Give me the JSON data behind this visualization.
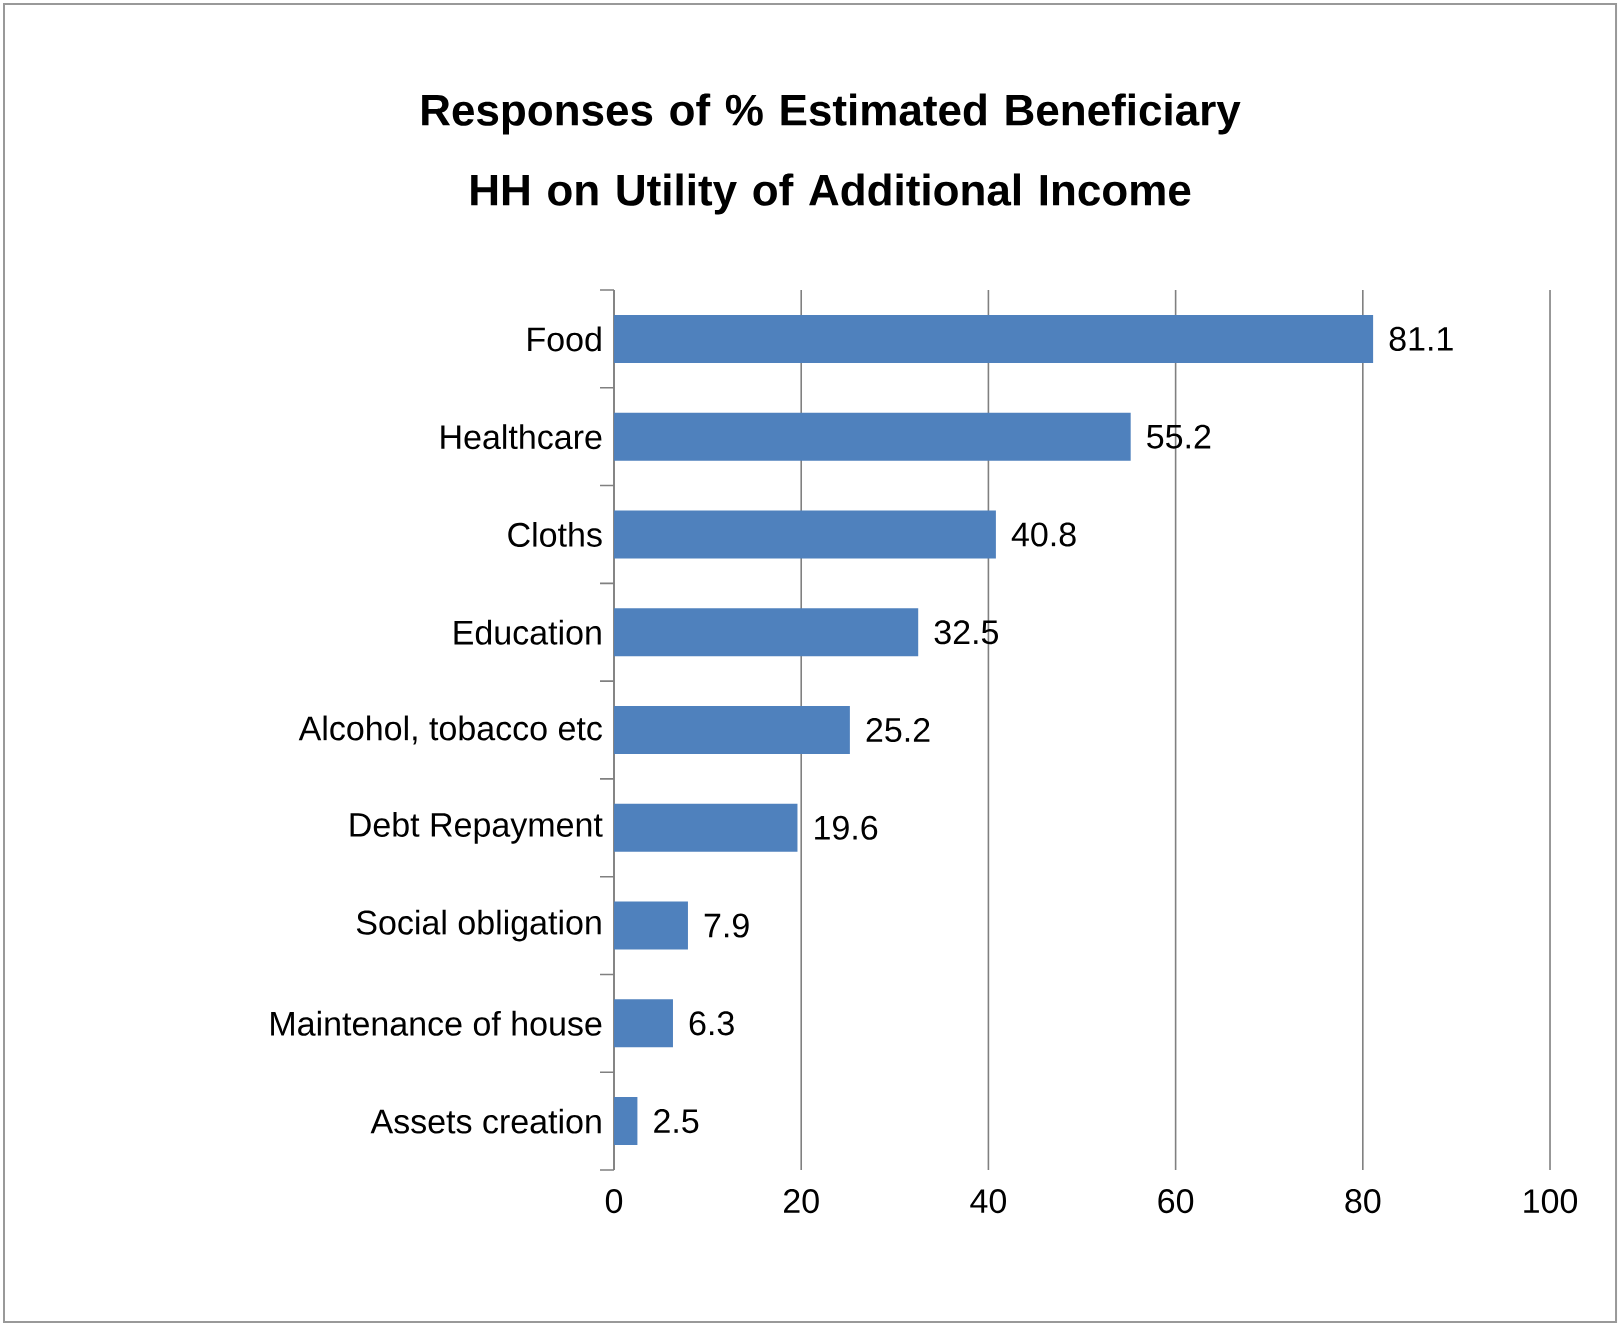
{
  "chart_data": {
    "type": "bar",
    "orientation": "horizontal",
    "title": "Responses of % Estimated Beneficiary HH on Utility of Additional Income",
    "categories": [
      "Food",
      "Healthcare",
      "Cloths",
      "Education",
      "Alcohol, tobacco etc",
      "Debt Repayment",
      "Social obligation",
      "Maintenance of house",
      "Assets creation"
    ],
    "values": [
      81.1,
      55.2,
      40.8,
      32.5,
      25.2,
      19.6,
      7.9,
      6.3,
      2.5
    ],
    "color": "#4f81bd",
    "data_labels": true,
    "xlim": [
      0,
      100
    ],
    "xticks": [
      0,
      20,
      40,
      60,
      80,
      100
    ],
    "grid": "x"
  }
}
